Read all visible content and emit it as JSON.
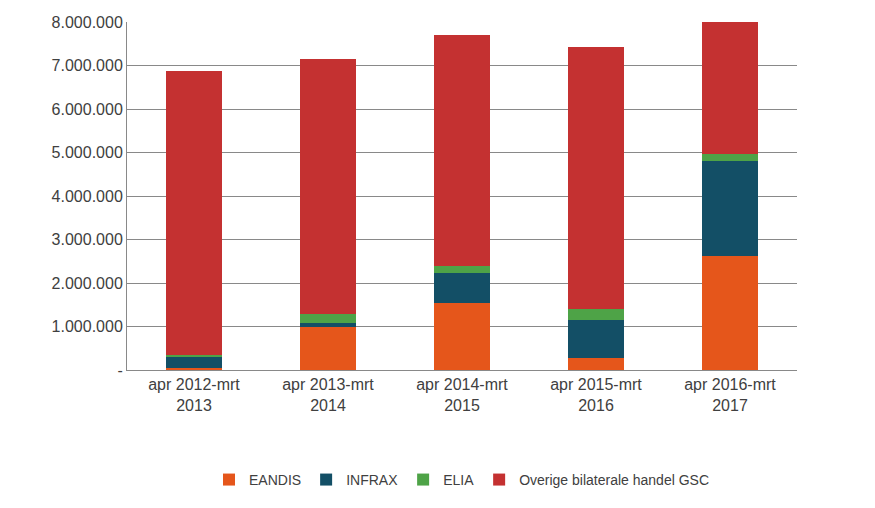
{
  "chart_data": {
    "type": "bar",
    "stacked": true,
    "grid": true,
    "legend": "bottom",
    "categories": [
      "apr 2012-mrt 2013",
      "apr 2013-mrt 2014",
      "apr 2014-mrt 2015",
      "apr 2015-mrt 2016",
      "apr 2016-mrt 2017"
    ],
    "series": [
      {
        "name": "EANDIS",
        "color": "#E5561B",
        "values": [
          50000,
          980000,
          1530000,
          270000,
          2620000
        ]
      },
      {
        "name": "INFRAX",
        "color": "#134F66",
        "values": [
          260000,
          110000,
          690000,
          890000,
          2180000
        ]
      },
      {
        "name": "ELIA",
        "color": "#4EA347",
        "values": [
          30000,
          200000,
          160000,
          240000,
          160000
        ]
      },
      {
        "name": "Overige bilaterale handel GSC",
        "color": "#C43131",
        "values": [
          6540000,
          5870000,
          5330000,
          6020000,
          3040000
        ]
      }
    ],
    "ylim": [
      0,
      8000000
    ],
    "yticks": [
      {
        "value": 0,
        "label": "-"
      },
      {
        "value": 1000000,
        "label": "1.000.000"
      },
      {
        "value": 2000000,
        "label": "2.000.000"
      },
      {
        "value": 3000000,
        "label": "3.000.000"
      },
      {
        "value": 4000000,
        "label": "4.000.000"
      },
      {
        "value": 5000000,
        "label": "5.000.000"
      },
      {
        "value": 6000000,
        "label": "6.000.000"
      },
      {
        "value": 7000000,
        "label": "7.000.000"
      },
      {
        "value": 8000000,
        "label": "8.000.000"
      }
    ]
  }
}
